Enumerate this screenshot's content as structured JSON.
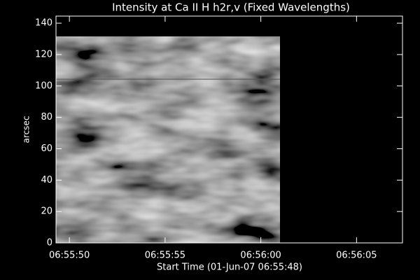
{
  "chart_data": {
    "type": "image",
    "title": "Intensity at Ca II H h2r,v (Fixed Wavelengths)",
    "x_label": "Start Time (01-Jun-07 06:55:48)",
    "y_label": "arcsec",
    "xlim": [
      1.3,
      19.4
    ],
    "xticks": [
      {
        "value": 2,
        "label": "06:55:50"
      },
      {
        "value": 7,
        "label": "06:55:55"
      },
      {
        "value": 12,
        "label": "06:56:00"
      },
      {
        "value": 17,
        "label": "06:56:05"
      }
    ],
    "ylim": [
      0,
      144.5
    ],
    "yticks": [
      0,
      20,
      40,
      60,
      80,
      100,
      120,
      140
    ],
    "image_xlim": [
      1.3,
      13.0
    ],
    "image_ylim": [
      0,
      131.5
    ],
    "hline": 104.3,
    "background": "#000000",
    "axis_color": "#ffffff"
  }
}
